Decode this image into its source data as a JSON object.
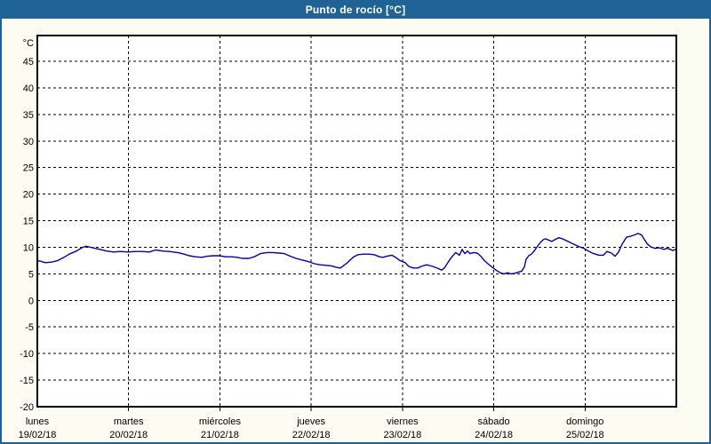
{
  "window": {
    "title": "Punto de rocío [°C]"
  },
  "colors": {
    "frame": "#1F6396",
    "titlebar_bg": "#1F6396",
    "titlebar_text": "#FFFFFF",
    "page_bg": "#FCFCF2",
    "plot_bg": "#FFFFFF",
    "grid": "#000000",
    "axis": "#000000",
    "series_line": "#0000AA"
  },
  "chart_data": {
    "type": "line",
    "title": "Punto de rocío [°C]",
    "ylabel": "°C",
    "ylim": [
      -20,
      50
    ],
    "y_ticks": [
      45,
      40,
      35,
      30,
      25,
      20,
      15,
      10,
      5,
      0,
      -5,
      -10,
      -15,
      -20
    ],
    "grid": "dashed",
    "legend_position": "none",
    "x_axis_days": [
      {
        "name": "lunes",
        "date": "19/02/18"
      },
      {
        "name": "martes",
        "date": "20/02/18"
      },
      {
        "name": "miércoles",
        "date": "21/02/18"
      },
      {
        "name": "jueves",
        "date": "22/02/18"
      },
      {
        "name": "viernes",
        "date": "23/02/18"
      },
      {
        "name": "sábado",
        "date": "24/02/18"
      },
      {
        "name": "domingo",
        "date": "25/02/18"
      }
    ],
    "x_unit": "days_from_start",
    "x_range": [
      0,
      7
    ],
    "series": [
      {
        "name": "Punto de rocío",
        "color": "#0000AA",
        "points": [
          [
            0.0,
            7.5
          ],
          [
            0.049,
            7.3
          ],
          [
            0.088,
            7.1
          ],
          [
            0.156,
            7.2
          ],
          [
            0.224,
            7.5
          ],
          [
            0.292,
            8.1
          ],
          [
            0.35,
            8.7
          ],
          [
            0.428,
            9.3
          ],
          [
            0.497,
            10.0
          ],
          [
            0.535,
            10.2
          ],
          [
            0.584,
            10.0
          ],
          [
            0.633,
            9.8
          ],
          [
            0.691,
            9.6
          ],
          [
            0.759,
            9.3
          ],
          [
            0.837,
            9.1
          ],
          [
            0.905,
            9.2
          ],
          [
            0.993,
            9.1
          ],
          [
            1.071,
            9.2
          ],
          [
            1.149,
            9.2
          ],
          [
            1.227,
            9.1
          ],
          [
            1.295,
            9.5
          ],
          [
            1.373,
            9.3
          ],
          [
            1.441,
            9.2
          ],
          [
            1.538,
            9.0
          ],
          [
            1.606,
            8.7
          ],
          [
            1.665,
            8.4
          ],
          [
            1.733,
            8.2
          ],
          [
            1.801,
            8.1
          ],
          [
            1.859,
            8.3
          ],
          [
            1.928,
            8.4
          ],
          [
            1.996,
            8.4
          ],
          [
            2.064,
            8.2
          ],
          [
            2.132,
            8.2
          ],
          [
            2.19,
            8.1
          ],
          [
            2.249,
            7.9
          ],
          [
            2.317,
            7.9
          ],
          [
            2.375,
            8.2
          ],
          [
            2.444,
            8.8
          ],
          [
            2.512,
            9.0
          ],
          [
            2.58,
            9.0
          ],
          [
            2.648,
            8.9
          ],
          [
            2.706,
            8.8
          ],
          [
            2.775,
            8.3
          ],
          [
            2.833,
            7.9
          ],
          [
            2.901,
            7.6
          ],
          [
            2.969,
            7.3
          ],
          [
            3.038,
            6.9
          ],
          [
            3.096,
            6.7
          ],
          [
            3.164,
            6.6
          ],
          [
            3.222,
            6.5
          ],
          [
            3.281,
            6.2
          ],
          [
            3.32,
            6.1
          ],
          [
            3.359,
            6.6
          ],
          [
            3.398,
            7.1
          ],
          [
            3.427,
            7.6
          ],
          [
            3.466,
            8.2
          ],
          [
            3.514,
            8.6
          ],
          [
            3.573,
            8.7
          ],
          [
            3.631,
            8.7
          ],
          [
            3.69,
            8.6
          ],
          [
            3.748,
            8.2
          ],
          [
            3.787,
            8.1
          ],
          [
            3.826,
            8.3
          ],
          [
            3.884,
            8.5
          ],
          [
            3.933,
            8.0
          ],
          [
            3.972,
            7.5
          ],
          [
            4.03,
            7.1
          ],
          [
            4.069,
            6.4
          ],
          [
            4.118,
            6.1
          ],
          [
            4.167,
            6.1
          ],
          [
            4.206,
            6.4
          ],
          [
            4.264,
            6.7
          ],
          [
            4.332,
            6.4
          ],
          [
            4.391,
            6.0
          ],
          [
            4.43,
            5.7
          ],
          [
            4.459,
            6.1
          ],
          [
            4.527,
            7.9
          ],
          [
            4.556,
            8.5
          ],
          [
            4.585,
            9.0
          ],
          [
            4.624,
            8.5
          ],
          [
            4.653,
            9.6
          ],
          [
            4.683,
            8.8
          ],
          [
            4.712,
            9.3
          ],
          [
            4.741,
            8.8
          ],
          [
            4.78,
            9.0
          ],
          [
            4.819,
            8.9
          ],
          [
            4.858,
            8.3
          ],
          [
            4.897,
            7.5
          ],
          [
            4.936,
            6.9
          ],
          [
            4.965,
            6.5
          ],
          [
            4.994,
            6.1
          ],
          [
            5.033,
            5.6
          ],
          [
            5.072,
            5.2
          ],
          [
            5.111,
            5.0
          ],
          [
            5.15,
            5.2
          ],
          [
            5.189,
            5.0
          ],
          [
            5.228,
            5.1
          ],
          [
            5.267,
            5.3
          ],
          [
            5.306,
            5.5
          ],
          [
            5.335,
            6.3
          ],
          [
            5.354,
            7.7
          ],
          [
            5.383,
            8.4
          ],
          [
            5.413,
            8.7
          ],
          [
            5.442,
            9.3
          ],
          [
            5.471,
            10.0
          ],
          [
            5.51,
            10.9
          ],
          [
            5.539,
            11.4
          ],
          [
            5.568,
            11.6
          ],
          [
            5.607,
            11.3
          ],
          [
            5.636,
            11.1
          ],
          [
            5.675,
            11.5
          ],
          [
            5.714,
            11.8
          ],
          [
            5.753,
            11.6
          ],
          [
            5.801,
            11.2
          ],
          [
            5.85,
            10.8
          ],
          [
            5.899,
            10.4
          ],
          [
            5.938,
            10.1
          ],
          [
            5.987,
            9.8
          ],
          [
            6.036,
            9.3
          ],
          [
            6.094,
            8.8
          ],
          [
            6.153,
            8.5
          ],
          [
            6.201,
            8.5
          ],
          [
            6.24,
            9.2
          ],
          [
            6.289,
            8.9
          ],
          [
            6.328,
            8.3
          ],
          [
            6.367,
            9.1
          ],
          [
            6.406,
            10.6
          ],
          [
            6.455,
            11.9
          ],
          [
            6.503,
            12.1
          ],
          [
            6.552,
            12.4
          ],
          [
            6.581,
            12.6
          ],
          [
            6.62,
            12.3
          ],
          [
            6.649,
            11.5
          ],
          [
            6.679,
            10.7
          ],
          [
            6.718,
            10.1
          ],
          [
            6.766,
            9.8
          ],
          [
            6.815,
            9.9
          ],
          [
            6.864,
            9.6
          ],
          [
            6.893,
            9.8
          ],
          [
            6.922,
            9.7
          ],
          [
            6.961,
            9.4
          ],
          [
            6.99,
            9.6
          ],
          [
            7.0,
            9.5
          ]
        ]
      }
    ]
  }
}
